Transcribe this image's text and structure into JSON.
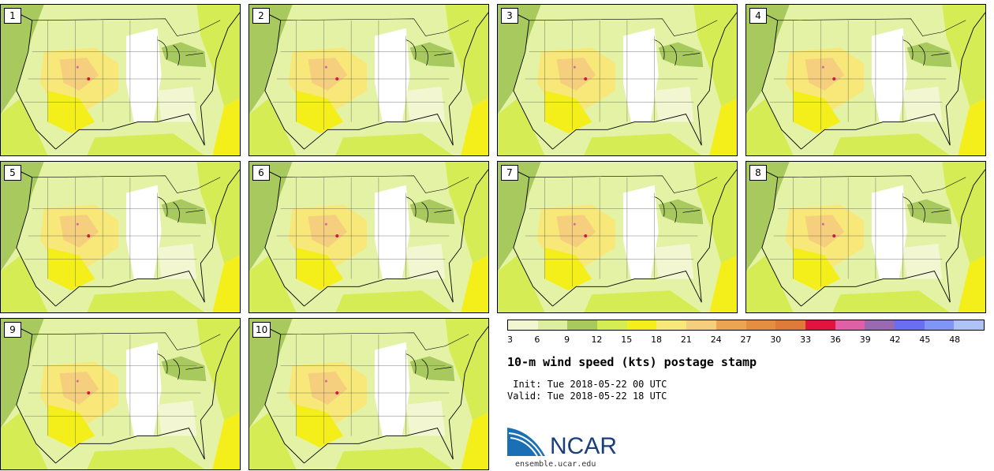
{
  "panels": [
    {
      "label": "1"
    },
    {
      "label": "2"
    },
    {
      "label": "3"
    },
    {
      "label": "4"
    },
    {
      "label": "5"
    },
    {
      "label": "6"
    },
    {
      "label": "7"
    },
    {
      "label": "8"
    },
    {
      "label": "9"
    },
    {
      "label": "10"
    }
  ],
  "colorbar": {
    "colors": [
      "#f2f7d2",
      "#dcefa0",
      "#a8c95e",
      "#d6ec55",
      "#f4ef1a",
      "#f8e87a",
      "#f5cf7e",
      "#eba552",
      "#e48e42",
      "#de7a3a",
      "#e0143f",
      "#e060a8",
      "#9a6ab0",
      "#6a6ef2",
      "#7f96f6",
      "#aec4f6"
    ],
    "tick_labels": [
      "3",
      "6",
      "9",
      "12",
      "15",
      "18",
      "21",
      "24",
      "27",
      "30",
      "33",
      "36",
      "39",
      "42",
      "45",
      "48"
    ]
  },
  "title": "10-m wind speed (kts) postage stamp",
  "init_line": " Init: Tue 2018-05-22 00 UTC",
  "valid_line": "Valid: Tue 2018-05-22 18 UTC",
  "logo_text": "NCAR",
  "website": "ensemble.ucar.edu"
}
